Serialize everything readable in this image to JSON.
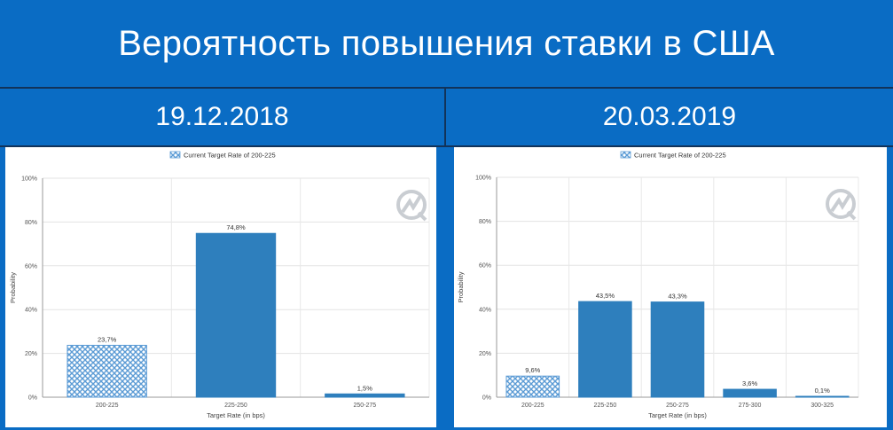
{
  "header": {
    "title": "Вероятность повышения ставки в США",
    "dates": [
      "19.12.2018",
      "20.03.2019"
    ]
  },
  "colors": {
    "background": "#0a6cc4",
    "bar_blue": "#2e7fbd",
    "hatched_bar": "#5b9bd5",
    "text_white": "#ffffff"
  },
  "chart_data": [
    {
      "type": "bar",
      "legend": "Current Target Rate of 200-225",
      "legend_position": "top",
      "xlabel": "Target Rate (in bps)",
      "ylabel": "Probability",
      "ylim": [
        0,
        100
      ],
      "yticks": [
        "0%",
        "20%",
        "40%",
        "60%",
        "80%",
        "100%"
      ],
      "grid": true,
      "categories": [
        "200-225",
        "225-250",
        "250-275"
      ],
      "values": [
        23.7,
        74.8,
        1.5
      ],
      "value_labels": [
        "23,7%",
        "74,8%",
        "1,5%"
      ],
      "hatched_index": 0
    },
    {
      "type": "bar",
      "legend": "Current Target Rate of 200-225",
      "legend_position": "top",
      "xlabel": "Target Rate (in bps)",
      "ylabel": "Probability",
      "ylim": [
        0,
        100
      ],
      "yticks": [
        "0%",
        "20%",
        "40%",
        "60%",
        "80%",
        "100%"
      ],
      "grid": true,
      "categories": [
        "200-225",
        "225-250",
        "250-275",
        "275-300",
        "300-325"
      ],
      "values": [
        9.6,
        43.5,
        43.3,
        3.6,
        0.1
      ],
      "value_labels": [
        "9,6%",
        "43,5%",
        "43,3%",
        "3,6%",
        "0,1%"
      ],
      "hatched_index": 0
    }
  ]
}
